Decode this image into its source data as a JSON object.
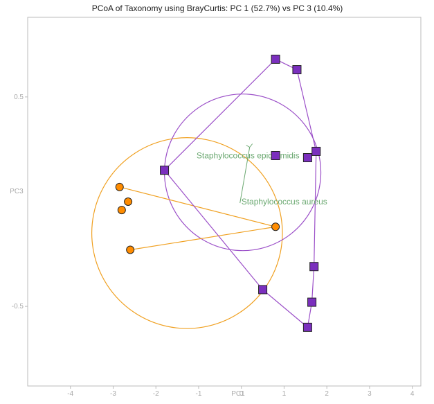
{
  "chart_data": {
    "type": "scatter",
    "title": "PCoA of Taxonomy using BrayCurtis: PC 1 (52.7%) vs PC 3 (10.4%)",
    "xlabel": "PC1",
    "ylabel": "PC3",
    "xlim": [
      -5.0,
      4.2
    ],
    "ylim": [
      0.88,
      -0.88
    ],
    "xticks": [
      -4,
      -3,
      -2,
      -1,
      0,
      1,
      2,
      3,
      4
    ],
    "yticks": [
      -0.5,
      0.5
    ],
    "colors": {
      "orange": "#ff8c00",
      "orange_line": "#f0a020",
      "purple": "#7b2fbe",
      "purple_line": "#9b4fc8",
      "annot": "#6aa870",
      "frame": "#bbbbbb"
    },
    "series": [
      {
        "marker": "circle",
        "color": "#ff8c00",
        "points": [
          {
            "x": -2.6,
            "y": -0.23
          },
          {
            "x": 0.8,
            "y": -0.12
          },
          {
            "x": -2.8,
            "y": -0.04
          },
          {
            "x": -2.65,
            "y": 0.0
          },
          {
            "x": -2.85,
            "y": 0.07
          }
        ],
        "links": [
          [
            0,
            1
          ],
          [
            1,
            4
          ]
        ],
        "ellipse": {
          "cx": -1.27,
          "cy": -0.15,
          "rx": 2.23,
          "ry": 0.255,
          "angle": 12
        }
      },
      {
        "marker": "square",
        "color": "#7b2fbe",
        "points": [
          {
            "x": 1.55,
            "y": -0.6
          },
          {
            "x": 1.65,
            "y": -0.48
          },
          {
            "x": 1.7,
            "y": -0.31
          },
          {
            "x": 0.5,
            "y": -0.42
          },
          {
            "x": -1.8,
            "y": 0.15
          },
          {
            "x": 0.8,
            "y": 0.22
          },
          {
            "x": 1.55,
            "y": 0.21
          },
          {
            "x": 1.75,
            "y": 0.24
          },
          {
            "x": 1.3,
            "y": 0.63
          },
          {
            "x": 0.8,
            "y": 0.68
          }
        ],
        "links": [
          [
            0,
            1
          ],
          [
            1,
            2
          ],
          [
            2,
            7
          ],
          [
            7,
            6
          ],
          [
            7,
            8
          ],
          [
            8,
            9
          ],
          [
            9,
            4
          ],
          [
            4,
            3
          ],
          [
            3,
            0
          ]
        ],
        "ellipse": {
          "cx": 0.03,
          "cy": 0.14,
          "rx": 1.83,
          "ry": 0.66,
          "angle": 74
        }
      }
    ],
    "annotations": [
      {
        "text": "Staphylococcus aureus",
        "x": 0.0,
        "y": 0.0
      },
      {
        "text": "Staphylococcus epidermidis",
        "x": -1.05,
        "y": 0.22
      }
    ],
    "grid": false,
    "legend": "none"
  }
}
